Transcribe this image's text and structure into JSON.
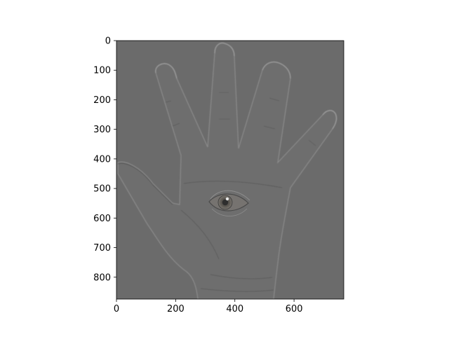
{
  "chart_data": {
    "type": "image",
    "title": "",
    "xlabel": "",
    "ylabel": "",
    "xlim": [
      0,
      768
    ],
    "ylim": [
      874,
      0
    ],
    "x_ticks": [
      0,
      200,
      400,
      600
    ],
    "y_ticks": [
      0,
      100,
      200,
      300,
      400,
      500,
      600,
      700,
      800
    ],
    "grid": false,
    "background_color": "#6b6b6b",
    "content": "high-pass filtered grayscale image of an open hand with an eye in the palm"
  }
}
